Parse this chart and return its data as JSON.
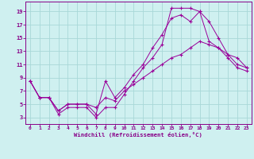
{
  "xlabel": "Windchill (Refroidissement éolien,°C)",
  "bg_color": "#cff0f0",
  "grid_color": "#a8d8d8",
  "line_color": "#990099",
  "xlim": [
    -0.5,
    23.5
  ],
  "ylim": [
    2,
    20.5
  ],
  "xticks": [
    0,
    1,
    2,
    3,
    4,
    5,
    6,
    7,
    8,
    9,
    10,
    11,
    12,
    13,
    14,
    15,
    16,
    17,
    18,
    19,
    20,
    21,
    22,
    23
  ],
  "yticks": [
    3,
    5,
    7,
    9,
    11,
    13,
    15,
    17,
    19
  ],
  "line1_x": [
    0,
    1,
    2,
    3,
    4,
    5,
    6,
    7,
    8,
    9,
    10,
    11,
    12,
    13,
    14,
    15,
    16,
    17,
    18,
    19,
    20,
    21,
    22,
    23
  ],
  "line1_y": [
    8.5,
    6.0,
    6.0,
    3.5,
    4.5,
    4.5,
    4.5,
    3.0,
    4.5,
    4.5,
    6.5,
    8.5,
    10.5,
    12.0,
    14.0,
    19.5,
    19.5,
    19.5,
    19.0,
    17.5,
    15.0,
    12.5,
    11.0,
    10.5
  ],
  "line2_x": [
    0,
    1,
    2,
    3,
    4,
    5,
    6,
    7,
    8,
    9,
    10,
    11,
    12,
    13,
    14,
    15,
    16,
    17,
    18,
    19,
    20,
    21,
    22,
    23
  ],
  "line2_y": [
    8.5,
    6.0,
    6.0,
    4.0,
    5.0,
    5.0,
    5.0,
    3.5,
    8.5,
    6.0,
    7.5,
    9.5,
    11.0,
    13.5,
    15.5,
    18.0,
    18.5,
    17.5,
    19.0,
    14.5,
    13.5,
    12.5,
    12.0,
    10.5
  ],
  "line3_x": [
    0,
    1,
    2,
    3,
    4,
    5,
    6,
    7,
    8,
    9,
    10,
    11,
    12,
    13,
    14,
    15,
    16,
    17,
    18,
    19,
    20,
    21,
    22,
    23
  ],
  "line3_y": [
    8.5,
    6.0,
    6.0,
    4.0,
    5.0,
    5.0,
    5.0,
    4.5,
    6.0,
    5.5,
    7.0,
    8.0,
    9.0,
    10.0,
    11.0,
    12.0,
    12.5,
    13.5,
    14.5,
    14.0,
    13.5,
    12.0,
    10.5,
    10.0
  ]
}
